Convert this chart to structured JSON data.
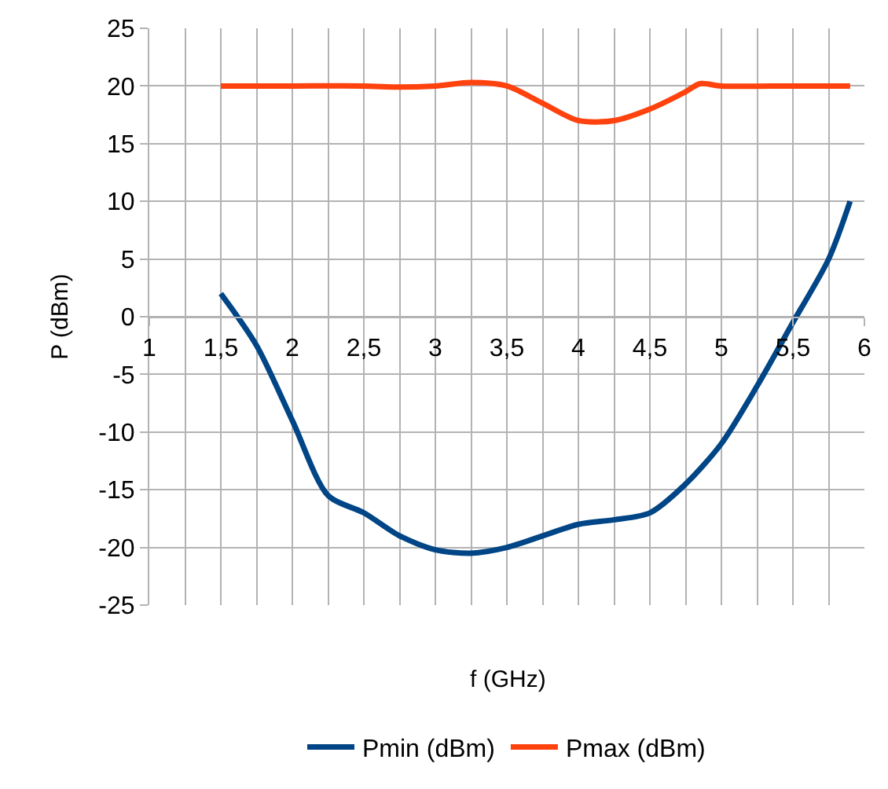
{
  "chart_data": {
    "type": "line",
    "xlabel": "f (GHz)",
    "ylabel": "P (dBm)",
    "xlim": [
      1,
      6
    ],
    "ylim": [
      -25,
      25
    ],
    "xticks": [
      1,
      {
        "value": 1.5,
        "label": "1,5"
      },
      2,
      {
        "value": 2.5,
        "label": "2,5"
      },
      3,
      {
        "value": 3.5,
        "label": "3,5"
      },
      4,
      {
        "value": 4.5,
        "label": "4,5"
      },
      5,
      {
        "value": 5.5,
        "label": "5,5"
      },
      6
    ],
    "yticks": [
      -25,
      -20,
      -15,
      -10,
      -5,
      0,
      5,
      10,
      15,
      20,
      25
    ],
    "grid": true,
    "legend": "bottom",
    "marker": "none",
    "line_style": "solid",
    "series": [
      {
        "name": "Pmin (dBm)",
        "color": "#004586",
        "x": [
          1.5,
          1.75,
          2.0,
          2.25,
          2.5,
          2.75,
          3.0,
          3.25,
          3.5,
          3.75,
          4.0,
          4.25,
          4.5,
          4.75,
          5.0,
          5.25,
          5.5,
          5.75,
          5.9
        ],
        "values": [
          2,
          -2.5,
          -9,
          -15.5,
          -17,
          -19,
          -20.2,
          -20.5,
          -20,
          -19,
          -18,
          -17.6,
          -17,
          -14.5,
          -11,
          -6,
          -0.5,
          5,
          10
        ]
      },
      {
        "name": "Pmax (dBm)",
        "color": "#ff420e",
        "x": [
          1.5,
          2.0,
          2.5,
          2.75,
          3.0,
          3.25,
          3.5,
          3.75,
          4.0,
          4.25,
          4.5,
          4.75,
          4.85,
          5.0,
          5.5,
          5.9
        ],
        "values": [
          20,
          20,
          20,
          19.9,
          20,
          20.3,
          20,
          18.5,
          17,
          17,
          18,
          19.5,
          20.2,
          20,
          20,
          20
        ]
      }
    ]
  }
}
